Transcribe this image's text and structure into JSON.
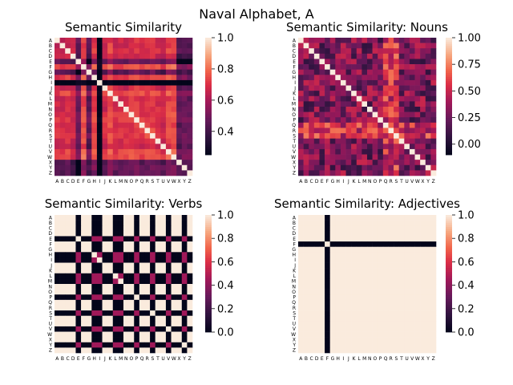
{
  "suptitle": "Naval Alphabet, A",
  "letters": [
    "A",
    "B",
    "C",
    "D",
    "E",
    "F",
    "G",
    "H",
    "I",
    "J",
    "K",
    "L",
    "M",
    "N",
    "O",
    "P",
    "Q",
    "R",
    "S",
    "T",
    "U",
    "V",
    "W",
    "X",
    "Y",
    "Z"
  ],
  "chart_data": [
    {
      "type": "heatmap",
      "title": "Semantic Similarity",
      "colorbar": {
        "min": 0.25,
        "max": 1.0,
        "ticks": [
          0.4,
          0.6,
          0.8,
          1.0
        ],
        "tick_labels": [
          "0.4",
          "0.6",
          "0.8",
          "1.0"
        ]
      },
      "pattern": {
        "kind": "dense",
        "base": 0.72,
        "low": [
          6,
          8,
          23,
          24,
          25
        ],
        "very_low": [
          4,
          8
        ],
        "seed": 11
      }
    },
    {
      "type": "heatmap",
      "title": "Semantic Similarity: Nouns",
      "colorbar": {
        "min": -0.1,
        "max": 1.0,
        "ticks": [
          0.0,
          0.25,
          0.5,
          0.75,
          1.0
        ],
        "tick_labels": [
          "0.00",
          "0.25",
          "0.50",
          "0.75",
          "1.00"
        ]
      },
      "pattern": {
        "kind": "noisy",
        "base": 0.22,
        "bright_block": [
          16,
          17,
          18
        ],
        "seed": 29
      }
    },
    {
      "type": "heatmap",
      "title": "Semantic Similarity: Verbs",
      "colorbar": {
        "min": 0.0,
        "max": 1.0,
        "ticks": [
          0.0,
          0.2,
          0.4,
          0.6,
          0.8,
          1.0
        ],
        "tick_labels": [
          "0.0",
          "0.2",
          "0.4",
          "0.6",
          "0.8",
          "1.0"
        ]
      },
      "pattern": {
        "kind": "stripes",
        "zero_indices": [
          4,
          7,
          8,
          11,
          12,
          15,
          18,
          21,
          24
        ],
        "cross_value": 0.45
      }
    },
    {
      "type": "heatmap",
      "title": "Semantic Similarity: Adjectives",
      "colorbar": {
        "min": 0.0,
        "max": 1.0,
        "ticks": [
          0.0,
          0.2,
          0.4,
          0.6,
          0.8,
          1.0
        ],
        "tick_labels": [
          "0.0",
          "0.2",
          "0.4",
          "0.6",
          "0.8",
          "1.0"
        ]
      },
      "pattern": {
        "kind": "stripes",
        "zero_indices": [
          5
        ],
        "cross_value": 1.0
      }
    }
  ]
}
